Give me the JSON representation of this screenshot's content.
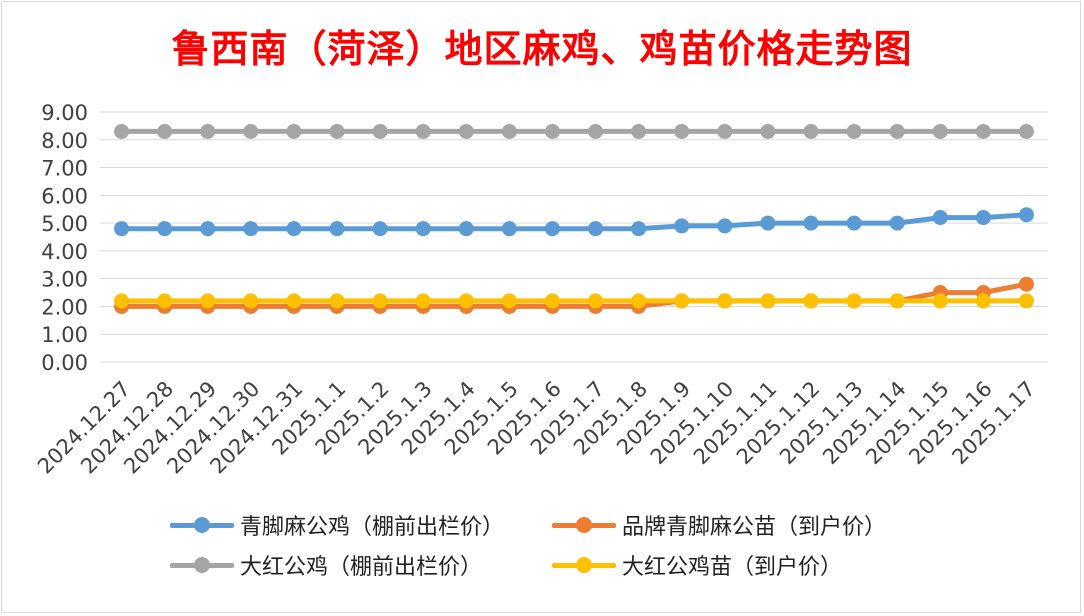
{
  "chart_data": {
    "type": "line",
    "title": "鲁西南（菏泽）地区麻鸡、鸡苗价格走势图",
    "xlabel": "",
    "ylabel": "",
    "ylim": [
      0,
      9
    ],
    "yticks": [
      "0.00",
      "1.00",
      "2.00",
      "3.00",
      "4.00",
      "5.00",
      "6.00",
      "7.00",
      "8.00",
      "9.00"
    ],
    "grid": true,
    "legend_position": "bottom",
    "categories": [
      "2024.12.27",
      "2024.12.28",
      "2024.12.29",
      "2024.12.30",
      "2024.12.31",
      "2025.1.1",
      "2025.1.2",
      "2025.1.3",
      "2025.1.4",
      "2025.1.5",
      "2025.1.6",
      "2025.1.7",
      "2025.1.8",
      "2025.1.9",
      "2025.1.10",
      "2025.1.11",
      "2025.1.12",
      "2025.1.13",
      "2025.1.14",
      "2025.1.15",
      "2025.1.16",
      "2025.1.17"
    ],
    "series": [
      {
        "name": "青脚麻公鸡（棚前出栏价）",
        "color": "#5b9bd5",
        "values": [
          4.8,
          4.8,
          4.8,
          4.8,
          4.8,
          4.8,
          4.8,
          4.8,
          4.8,
          4.8,
          4.8,
          4.8,
          4.8,
          4.9,
          4.9,
          5.0,
          5.0,
          5.0,
          5.0,
          5.2,
          5.2,
          5.3
        ]
      },
      {
        "name": "品牌青脚麻公苗（到户价）",
        "color": "#ed7d31",
        "values": [
          2.0,
          2.0,
          2.0,
          2.0,
          2.0,
          2.0,
          2.0,
          2.0,
          2.0,
          2.0,
          2.0,
          2.0,
          2.0,
          2.2,
          2.2,
          2.2,
          2.2,
          2.2,
          2.2,
          2.5,
          2.5,
          2.8
        ]
      },
      {
        "name": "大红公鸡（棚前出栏价）",
        "color": "#a5a5a5",
        "values": [
          8.3,
          8.3,
          8.3,
          8.3,
          8.3,
          8.3,
          8.3,
          8.3,
          8.3,
          8.3,
          8.3,
          8.3,
          8.3,
          8.3,
          8.3,
          8.3,
          8.3,
          8.3,
          8.3,
          8.3,
          8.3,
          8.3
        ]
      },
      {
        "name": "大红公鸡苗（到户价）",
        "color": "#ffc000",
        "values": [
          2.2,
          2.2,
          2.2,
          2.2,
          2.2,
          2.2,
          2.2,
          2.2,
          2.2,
          2.2,
          2.2,
          2.2,
          2.2,
          2.2,
          2.2,
          2.2,
          2.2,
          2.2,
          2.2,
          2.2,
          2.2,
          2.2
        ]
      }
    ]
  }
}
